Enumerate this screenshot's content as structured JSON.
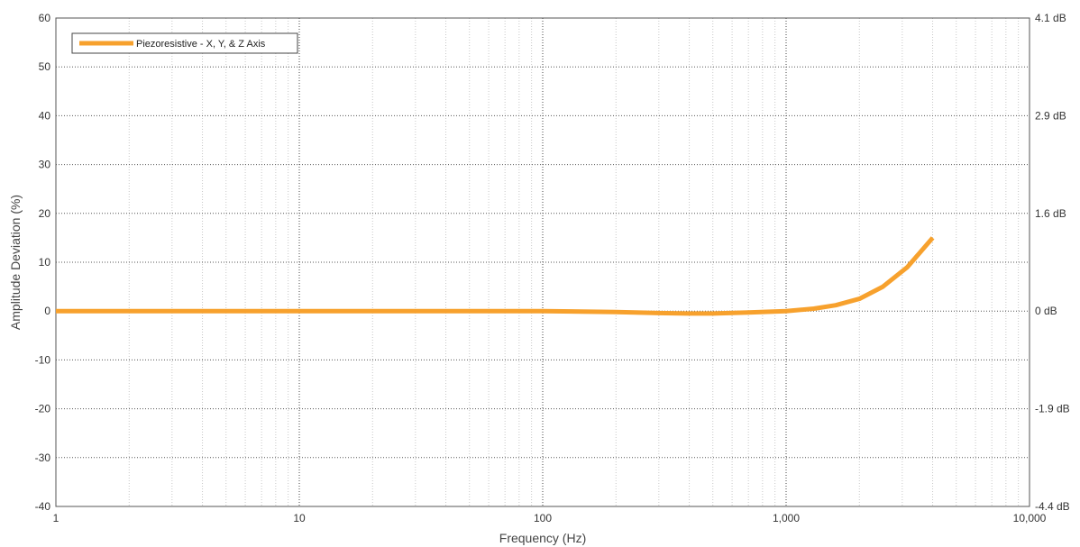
{
  "chart_data": {
    "type": "line",
    "x_scale": "log",
    "xlim": [
      1,
      10000
    ],
    "ylim": [
      -40,
      60
    ],
    "xlabel": "Frequency (Hz)",
    "ylabel": "Amplitude Deviation (%)",
    "x_ticks": [
      {
        "value": 1,
        "label": "1"
      },
      {
        "value": 10,
        "label": "10"
      },
      {
        "value": 100,
        "label": "100"
      },
      {
        "value": 1000,
        "label": "1,000"
      },
      {
        "value": 10000,
        "label": "10,000"
      }
    ],
    "y_ticks": [
      -40,
      -30,
      -20,
      -10,
      0,
      10,
      20,
      30,
      40,
      50,
      60
    ],
    "right_axis_ticks": [
      {
        "value": 60,
        "label": "4.1 dB"
      },
      {
        "value": 40,
        "label": "2.9 dB"
      },
      {
        "value": 20,
        "label": "1.6 dB"
      },
      {
        "value": 0,
        "label": "0 dB"
      },
      {
        "value": -20,
        "label": "-1.9 dB"
      },
      {
        "value": -40,
        "label": "-4.4 dB"
      }
    ],
    "grid": true,
    "legend_position": "top-left",
    "series": [
      {
        "name": "Piezoresistive - X, Y, & Z Axis",
        "color": "#f7a12d",
        "x": [
          1,
          10,
          50,
          100,
          200,
          300,
          400,
          500,
          700,
          1000,
          1300,
          1600,
          2000,
          2500,
          3150,
          4000
        ],
        "y": [
          0,
          0,
          0,
          0,
          -0.2,
          -0.4,
          -0.5,
          -0.5,
          -0.3,
          0,
          0.5,
          1.2,
          2.5,
          5,
          9,
          15
        ]
      }
    ]
  }
}
